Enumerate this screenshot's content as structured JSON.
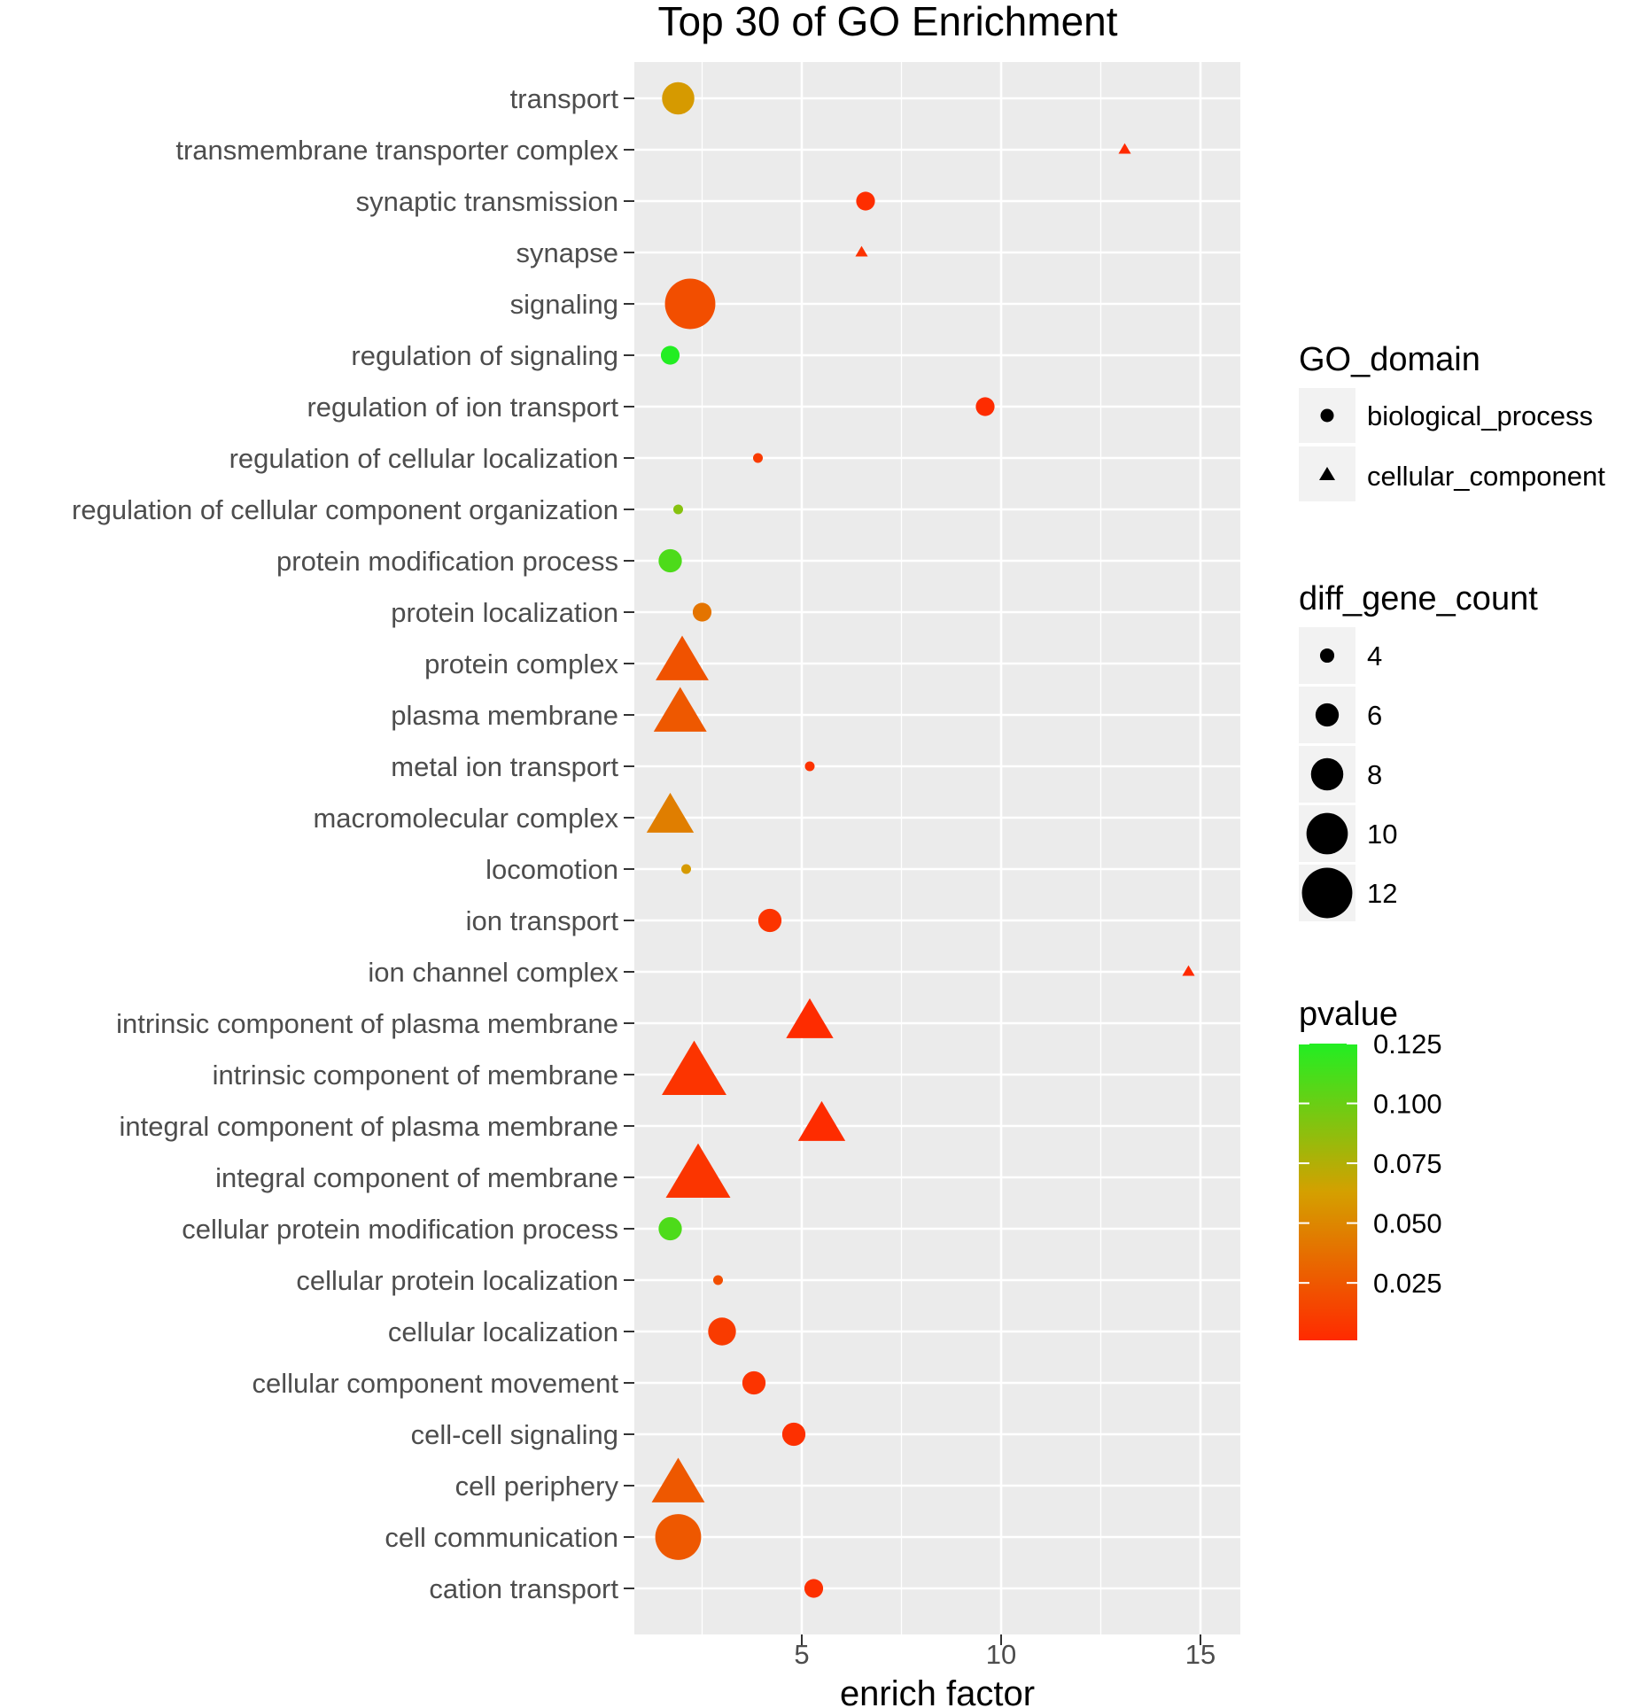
{
  "chart_data": {
    "type": "scatter",
    "title": "Top 30 of GO Enrichment",
    "xlabel": "enrich factor",
    "ylabel": "",
    "xlim": [
      0.8,
      16.0
    ],
    "xticks": [
      5,
      10,
      15
    ],
    "grid": true,
    "points": [
      {
        "term": "transport",
        "x": 1.9,
        "count": 8,
        "pvalue": 0.06,
        "domain": "biological_process"
      },
      {
        "term": "transmembrane transporter complex",
        "x": 13.1,
        "count": 3,
        "pvalue": 0.001,
        "domain": "cellular_component"
      },
      {
        "term": "synaptic transmission",
        "x": 6.6,
        "count": 5,
        "pvalue": 0.003,
        "domain": "biological_process"
      },
      {
        "term": "synapse",
        "x": 6.5,
        "count": 3,
        "pvalue": 0.005,
        "domain": "cellular_component"
      },
      {
        "term": "signaling",
        "x": 2.2,
        "count": 12,
        "pvalue": 0.02,
        "domain": "biological_process"
      },
      {
        "term": "regulation of signaling",
        "x": 1.7,
        "count": 5,
        "pvalue": 0.125,
        "domain": "biological_process"
      },
      {
        "term": "regulation of ion transport",
        "x": 9.6,
        "count": 5,
        "pvalue": 0.002,
        "domain": "biological_process"
      },
      {
        "term": "regulation of cellular localization",
        "x": 3.9,
        "count": 3,
        "pvalue": 0.01,
        "domain": "biological_process"
      },
      {
        "term": "regulation of cellular component organization",
        "x": 1.9,
        "count": 3,
        "pvalue": 0.09,
        "domain": "biological_process"
      },
      {
        "term": "protein modification process",
        "x": 1.7,
        "count": 6,
        "pvalue": 0.11,
        "domain": "biological_process"
      },
      {
        "term": "protein localization",
        "x": 2.5,
        "count": 5,
        "pvalue": 0.04,
        "domain": "biological_process"
      },
      {
        "term": "protein complex",
        "x": 2.0,
        "count": 10,
        "pvalue": 0.022,
        "domain": "cellular_component"
      },
      {
        "term": "plasma membrane",
        "x": 1.95,
        "count": 10,
        "pvalue": 0.025,
        "domain": "cellular_component"
      },
      {
        "term": "metal ion transport",
        "x": 5.2,
        "count": 3,
        "pvalue": 0.005,
        "domain": "biological_process"
      },
      {
        "term": "macromolecular complex",
        "x": 1.7,
        "count": 9,
        "pvalue": 0.045,
        "domain": "cellular_component"
      },
      {
        "term": "locomotion",
        "x": 2.1,
        "count": 3,
        "pvalue": 0.06,
        "domain": "biological_process"
      },
      {
        "term": "ion transport",
        "x": 4.2,
        "count": 6,
        "pvalue": 0.006,
        "domain": "biological_process"
      },
      {
        "term": "ion channel complex",
        "x": 14.7,
        "count": 3,
        "pvalue": 0.001,
        "domain": "cellular_component"
      },
      {
        "term": "intrinsic component of plasma membrane",
        "x": 5.2,
        "count": 9,
        "pvalue": 0.002,
        "domain": "cellular_component"
      },
      {
        "term": "intrinsic component of membrane",
        "x": 2.3,
        "count": 12,
        "pvalue": 0.006,
        "domain": "cellular_component"
      },
      {
        "term": "integral component of plasma membrane",
        "x": 5.5,
        "count": 9,
        "pvalue": 0.002,
        "domain": "cellular_component"
      },
      {
        "term": "integral component of membrane",
        "x": 2.4,
        "count": 12,
        "pvalue": 0.007,
        "domain": "cellular_component"
      },
      {
        "term": "cellular protein modification process",
        "x": 1.7,
        "count": 6,
        "pvalue": 0.11,
        "domain": "biological_process"
      },
      {
        "term": "cellular protein localization",
        "x": 2.9,
        "count": 3,
        "pvalue": 0.02,
        "domain": "biological_process"
      },
      {
        "term": "cellular localization",
        "x": 3.0,
        "count": 7,
        "pvalue": 0.01,
        "domain": "biological_process"
      },
      {
        "term": "cellular component movement",
        "x": 3.8,
        "count": 6,
        "pvalue": 0.006,
        "domain": "biological_process"
      },
      {
        "term": "cell-cell signaling",
        "x": 4.8,
        "count": 6,
        "pvalue": 0.004,
        "domain": "biological_process"
      },
      {
        "term": "cell periphery",
        "x": 1.9,
        "count": 10,
        "pvalue": 0.025,
        "domain": "cellular_component"
      },
      {
        "term": "cell communication",
        "x": 1.9,
        "count": 11,
        "pvalue": 0.025,
        "domain": "biological_process"
      },
      {
        "term": "cation transport",
        "x": 5.3,
        "count": 5,
        "pvalue": 0.004,
        "domain": "biological_process"
      }
    ],
    "legend": {
      "shape_title": "GO_domain",
      "shape_entries": [
        "biological_process",
        "cellular_component"
      ],
      "size_title": "diff_gene_count",
      "size_entries": [
        4,
        6,
        8,
        10,
        12
      ],
      "color_title": "pvalue",
      "color_ticks": [
        "0.125",
        "0.100",
        "0.075",
        "0.050",
        "0.025"
      ],
      "color_tick_values": [
        0.125,
        0.1,
        0.075,
        0.05,
        0.025
      ],
      "color_range": [
        0.001,
        0.125
      ],
      "color_low": "#ff2a00",
      "color_mid": "#d4a000",
      "color_high": "#22ee22",
      "placement": "right"
    },
    "panel_background": "#ebebeb"
  }
}
